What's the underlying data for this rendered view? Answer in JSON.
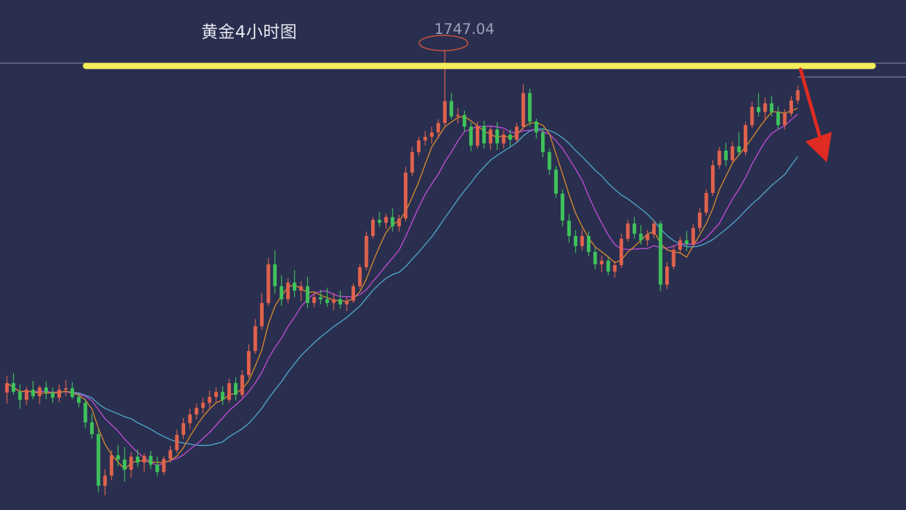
{
  "chart_data": {
    "type": "candlestick",
    "title": "黄金4小时图",
    "high_label": "1747.04",
    "resistance_level": 1747.04,
    "ylim": [
      1690,
      1750
    ],
    "colors": {
      "background": "#2a2f4f",
      "up": "#e0624d",
      "down": "#3fc25b",
      "ma_fast": "#d68a2c",
      "ma_mid": "#c24bd6",
      "ma_slow": "#4fa7c9",
      "resistance": "#f4ee5a",
      "arrow": "#e02b22",
      "marker": "#c9523e"
    },
    "candles": [
      [
        1704.5,
        1706.8,
        1703.0,
        1705.8
      ],
      [
        1705.8,
        1707.2,
        1704.2,
        1704.6
      ],
      [
        1704.6,
        1705.6,
        1702.3,
        1703.5
      ],
      [
        1703.5,
        1705.3,
        1702.8,
        1704.9
      ],
      [
        1704.9,
        1706.1,
        1703.6,
        1704.0
      ],
      [
        1704.0,
        1705.5,
        1702.9,
        1705.2
      ],
      [
        1705.2,
        1706.0,
        1703.6,
        1704.5
      ],
      [
        1704.5,
        1705.2,
        1703.1,
        1703.8
      ],
      [
        1703.8,
        1705.6,
        1703.2,
        1704.9
      ],
      [
        1704.9,
        1706.2,
        1704.0,
        1705.1
      ],
      [
        1705.1,
        1705.9,
        1703.6,
        1703.9
      ],
      [
        1703.9,
        1704.5,
        1702.5,
        1703.1
      ],
      [
        1703.1,
        1703.6,
        1699.6,
        1700.4
      ],
      [
        1700.4,
        1701.6,
        1698.2,
        1698.8
      ],
      [
        1698.8,
        1699.5,
        1690.8,
        1691.7
      ],
      [
        1691.7,
        1694.0,
        1690.4,
        1693.1
      ],
      [
        1693.1,
        1696.6,
        1692.5,
        1695.9
      ],
      [
        1695.9,
        1697.3,
        1694.4,
        1695.3
      ],
      [
        1695.3,
        1697.0,
        1692.3,
        1693.9
      ],
      [
        1693.9,
        1696.3,
        1692.8,
        1695.7
      ],
      [
        1695.7,
        1696.7,
        1694.3,
        1694.9
      ],
      [
        1694.9,
        1696.1,
        1693.6,
        1695.8
      ],
      [
        1695.8,
        1696.5,
        1694.0,
        1694.6
      ],
      [
        1694.6,
        1695.7,
        1693.0,
        1693.6
      ],
      [
        1693.6,
        1695.8,
        1693.2,
        1695.4
      ],
      [
        1695.4,
        1697.2,
        1694.9,
        1696.6
      ],
      [
        1696.6,
        1699.4,
        1696.2,
        1698.7
      ],
      [
        1698.7,
        1701.0,
        1698.1,
        1700.3
      ],
      [
        1700.3,
        1702.3,
        1699.5,
        1701.5
      ],
      [
        1701.5,
        1703.0,
        1700.8,
        1702.4
      ],
      [
        1702.4,
        1703.8,
        1701.6,
        1703.1
      ],
      [
        1703.1,
        1704.8,
        1702.4,
        1703.9
      ],
      [
        1703.9,
        1705.2,
        1703.0,
        1704.6
      ],
      [
        1704.6,
        1705.4,
        1702.8,
        1703.5
      ],
      [
        1703.5,
        1706.4,
        1703.1,
        1705.8
      ],
      [
        1705.8,
        1706.6,
        1703.4,
        1704.2
      ],
      [
        1704.2,
        1707.6,
        1703.8,
        1706.9
      ],
      [
        1706.9,
        1711.1,
        1706.5,
        1710.2
      ],
      [
        1710.2,
        1714.6,
        1709.8,
        1713.6
      ],
      [
        1713.6,
        1718.2,
        1713.1,
        1716.8
      ],
      [
        1716.8,
        1723.0,
        1716.4,
        1722.1
      ],
      [
        1722.1,
        1724.0,
        1718.1,
        1719.1
      ],
      [
        1719.1,
        1720.6,
        1716.4,
        1717.3
      ],
      [
        1717.3,
        1720.2,
        1716.8,
        1719.6
      ],
      [
        1719.6,
        1721.3,
        1717.6,
        1718.5
      ],
      [
        1718.5,
        1719.8,
        1717.0,
        1719.1
      ],
      [
        1719.1,
        1720.4,
        1716.1,
        1716.8
      ],
      [
        1716.8,
        1718.2,
        1716.2,
        1717.6
      ],
      [
        1717.6,
        1718.6,
        1716.6,
        1717.3
      ],
      [
        1717.3,
        1718.9,
        1716.3,
        1716.8
      ],
      [
        1716.8,
        1718.2,
        1715.8,
        1717.3
      ],
      [
        1717.3,
        1718.5,
        1716.0,
        1716.6
      ],
      [
        1716.6,
        1717.6,
        1715.7,
        1717.1
      ],
      [
        1717.1,
        1719.5,
        1716.8,
        1719.1
      ],
      [
        1719.1,
        1722.1,
        1718.7,
        1721.7
      ],
      [
        1721.7,
        1726.6,
        1721.3,
        1726.0
      ],
      [
        1726.0,
        1728.6,
        1725.6,
        1728.2
      ],
      [
        1728.2,
        1729.3,
        1727.2,
        1727.8
      ],
      [
        1727.8,
        1729.0,
        1727.0,
        1728.6
      ],
      [
        1728.6,
        1729.8,
        1726.6,
        1727.3
      ],
      [
        1727.3,
        1728.9,
        1726.6,
        1728.4
      ],
      [
        1728.4,
        1735.5,
        1728.0,
        1734.7
      ],
      [
        1734.7,
        1738.2,
        1734.2,
        1737.5
      ],
      [
        1737.5,
        1739.6,
        1737.0,
        1739.1
      ],
      [
        1739.1,
        1740.4,
        1738.4,
        1739.6
      ],
      [
        1739.6,
        1741.0,
        1738.7,
        1740.2
      ],
      [
        1740.2,
        1742.0,
        1739.4,
        1741.5
      ],
      [
        1741.5,
        1747.04,
        1741.1,
        1744.5
      ],
      [
        1744.5,
        1745.6,
        1742.0,
        1742.4
      ],
      [
        1742.4,
        1743.6,
        1741.4,
        1742.6
      ],
      [
        1742.6,
        1743.2,
        1740.3,
        1741.0
      ],
      [
        1741.0,
        1741.6,
        1737.6,
        1738.4
      ],
      [
        1738.4,
        1741.7,
        1738.0,
        1741.1
      ],
      [
        1741.1,
        1741.8,
        1738.0,
        1738.7
      ],
      [
        1738.7,
        1741.0,
        1737.8,
        1740.6
      ],
      [
        1740.6,
        1741.6,
        1737.8,
        1738.7
      ],
      [
        1738.7,
        1740.5,
        1738.0,
        1739.9
      ],
      [
        1739.9,
        1740.6,
        1738.3,
        1739.2
      ],
      [
        1739.2,
        1741.5,
        1738.8,
        1741.0
      ],
      [
        1741.0,
        1746.8,
        1740.6,
        1745.6
      ],
      [
        1745.6,
        1746.2,
        1741.0,
        1741.7
      ],
      [
        1741.7,
        1742.1,
        1739.4,
        1740.2
      ],
      [
        1740.2,
        1740.8,
        1736.8,
        1737.5
      ],
      [
        1737.5,
        1738.0,
        1734.4,
        1735.1
      ],
      [
        1735.1,
        1735.6,
        1731.2,
        1731.8
      ],
      [
        1731.8,
        1732.4,
        1727.3,
        1728.1
      ],
      [
        1728.1,
        1729.0,
        1725.1,
        1726.0
      ],
      [
        1726.0,
        1726.8,
        1723.7,
        1724.6
      ],
      [
        1724.6,
        1726.9,
        1724.0,
        1726.0
      ],
      [
        1726.0,
        1726.6,
        1723.2,
        1723.8
      ],
      [
        1723.8,
        1724.4,
        1721.4,
        1722.1
      ],
      [
        1722.1,
        1723.3,
        1721.0,
        1722.6
      ],
      [
        1722.6,
        1723.1,
        1720.6,
        1721.1
      ],
      [
        1721.1,
        1722.6,
        1720.3,
        1722.0
      ],
      [
        1722.0,
        1726.3,
        1721.6,
        1725.6
      ],
      [
        1725.6,
        1728.2,
        1725.2,
        1727.7
      ],
      [
        1727.7,
        1728.6,
        1725.6,
        1726.3
      ],
      [
        1726.3,
        1727.5,
        1724.8,
        1725.4
      ],
      [
        1725.4,
        1726.8,
        1724.6,
        1726.2
      ],
      [
        1726.2,
        1728.2,
        1725.7,
        1727.7
      ],
      [
        1727.7,
        1728.1,
        1718.4,
        1719.3
      ],
      [
        1719.3,
        1722.4,
        1718.7,
        1721.8
      ],
      [
        1721.8,
        1724.7,
        1721.4,
        1724.1
      ],
      [
        1724.1,
        1725.9,
        1723.7,
        1725.4
      ],
      [
        1725.4,
        1726.7,
        1723.9,
        1724.9
      ],
      [
        1724.9,
        1727.6,
        1724.6,
        1727.1
      ],
      [
        1727.1,
        1729.8,
        1726.6,
        1729.2
      ],
      [
        1729.2,
        1732.4,
        1728.8,
        1731.9
      ],
      [
        1731.9,
        1736.4,
        1731.5,
        1735.7
      ],
      [
        1735.7,
        1738.2,
        1735.2,
        1737.7
      ],
      [
        1737.7,
        1738.8,
        1735.6,
        1736.4
      ],
      [
        1736.4,
        1738.9,
        1736.1,
        1738.3
      ],
      [
        1738.3,
        1740.2,
        1737.0,
        1737.5
      ],
      [
        1737.5,
        1741.7,
        1737.0,
        1741.2
      ],
      [
        1741.2,
        1744.4,
        1740.8,
        1743.7
      ],
      [
        1743.7,
        1745.6,
        1742.4,
        1743.0
      ],
      [
        1743.0,
        1745.0,
        1741.8,
        1744.2
      ],
      [
        1744.2,
        1745.2,
        1742.4,
        1743.0
      ],
      [
        1743.0,
        1743.8,
        1740.6,
        1741.2
      ],
      [
        1741.2,
        1743.4,
        1740.6,
        1742.8
      ],
      [
        1742.8,
        1745.2,
        1742.4,
        1744.6
      ],
      [
        1744.6,
        1746.6,
        1744.1,
        1746.0
      ]
    ]
  }
}
